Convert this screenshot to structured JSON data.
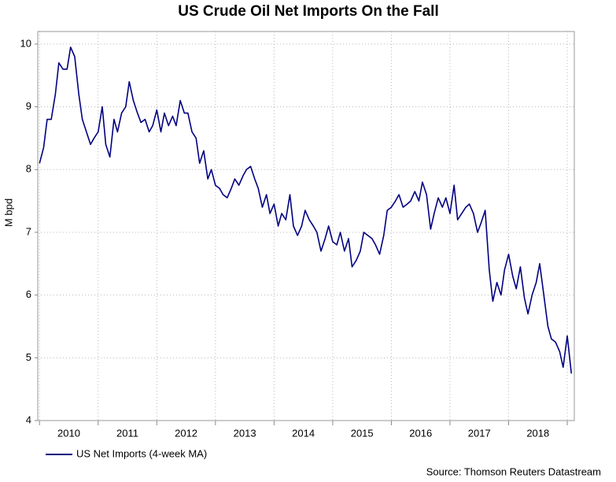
{
  "chart_data": {
    "type": "line",
    "title": "US Crude Oil Net Imports On the Fall",
    "y_label": "M bpd",
    "source": "Source: Thomson Reuters Datastream",
    "xlim": [
      2009.97,
      2019.12
    ],
    "xticks": [
      2010,
      2011,
      2012,
      2013,
      2014,
      2015,
      2016,
      2017,
      2018,
      2019
    ],
    "xlabels": [
      {
        "value": 2010.5,
        "label": "2010"
      },
      {
        "value": 2011.5,
        "label": "2011"
      },
      {
        "value": 2012.5,
        "label": "2012"
      },
      {
        "value": 2013.5,
        "label": "2013"
      },
      {
        "value": 2014.5,
        "label": "2014"
      },
      {
        "value": 2015.5,
        "label": "2015"
      },
      {
        "value": 2016.5,
        "label": "2016"
      },
      {
        "value": 2017.5,
        "label": "2017"
      },
      {
        "value": 2018.5,
        "label": "2018"
      }
    ],
    "ylim": [
      4,
      10.2
    ],
    "yticks": [
      4,
      5,
      6,
      7,
      8,
      9,
      10
    ],
    "grid": true,
    "legend": "bottom-left",
    "x": [
      2010,
      2010.07,
      2010.13,
      2010.2,
      2010.27,
      2010.33,
      2010.4,
      2010.47,
      2010.53,
      2010.6,
      2010.67,
      2010.73,
      2010.8,
      2010.87,
      2010.93,
      2011,
      2011.07,
      2011.13,
      2011.2,
      2011.27,
      2011.33,
      2011.4,
      2011.47,
      2011.53,
      2011.6,
      2011.67,
      2011.73,
      2011.8,
      2011.87,
      2011.93,
      2012,
      2012.07,
      2012.13,
      2012.2,
      2012.27,
      2012.33,
      2012.4,
      2012.47,
      2012.53,
      2012.6,
      2012.67,
      2012.73,
      2012.8,
      2012.87,
      2012.93,
      2013,
      2013.07,
      2013.13,
      2013.2,
      2013.27,
      2013.33,
      2013.4,
      2013.47,
      2013.53,
      2013.6,
      2013.67,
      2013.73,
      2013.8,
      2013.87,
      2013.93,
      2014,
      2014.07,
      2014.13,
      2014.2,
      2014.27,
      2014.33,
      2014.4,
      2014.47,
      2014.53,
      2014.6,
      2014.67,
      2014.73,
      2014.8,
      2014.87,
      2014.93,
      2015,
      2015.07,
      2015.13,
      2015.2,
      2015.27,
      2015.33,
      2015.4,
      2015.47,
      2015.53,
      2015.6,
      2015.67,
      2015.73,
      2015.8,
      2015.87,
      2015.93,
      2016,
      2016.07,
      2016.13,
      2016.2,
      2016.27,
      2016.33,
      2016.4,
      2016.47,
      2016.53,
      2016.6,
      2016.67,
      2016.73,
      2016.8,
      2016.87,
      2016.93,
      2017,
      2017.07,
      2017.13,
      2017.2,
      2017.27,
      2017.33,
      2017.4,
      2017.47,
      2017.53,
      2017.6,
      2017.67,
      2017.73,
      2017.8,
      2017.87,
      2017.93,
      2018,
      2018.07,
      2018.13,
      2018.2,
      2018.27,
      2018.33,
      2018.4,
      2018.47,
      2018.53,
      2018.6,
      2018.67,
      2018.73,
      2018.8,
      2018.87,
      2018.93,
      2019,
      2019.07
    ],
    "series": [
      {
        "name": "US Net Imports (4-week MA)",
        "color": "#000080",
        "values": [
          8.1,
          8.35,
          8.8,
          8.8,
          9.2,
          9.7,
          9.6,
          9.6,
          9.95,
          9.8,
          9.2,
          8.8,
          8.6,
          8.4,
          8.5,
          8.6,
          9.0,
          8.4,
          8.2,
          8.8,
          8.6,
          8.9,
          9.0,
          9.4,
          9.1,
          8.9,
          8.75,
          8.8,
          8.6,
          8.7,
          8.95,
          8.6,
          8.9,
          8.7,
          8.85,
          8.7,
          9.1,
          8.9,
          8.9,
          8.6,
          8.5,
          8.1,
          8.3,
          7.85,
          8.0,
          7.75,
          7.7,
          7.6,
          7.55,
          7.7,
          7.85,
          7.75,
          7.9,
          8.0,
          8.05,
          7.85,
          7.7,
          7.4,
          7.6,
          7.3,
          7.45,
          7.1,
          7.3,
          7.2,
          7.6,
          7.1,
          6.95,
          7.1,
          7.35,
          7.2,
          7.1,
          7.0,
          6.7,
          6.9,
          7.1,
          6.85,
          6.8,
          7.0,
          6.7,
          6.9,
          6.45,
          6.55,
          6.7,
          7.0,
          6.95,
          6.9,
          6.8,
          6.65,
          6.95,
          7.35,
          7.4,
          7.5,
          7.6,
          7.4,
          7.45,
          7.5,
          7.65,
          7.5,
          7.8,
          7.6,
          7.05,
          7.3,
          7.55,
          7.4,
          7.55,
          7.3,
          7.75,
          7.2,
          7.3,
          7.4,
          7.45,
          7.3,
          7.0,
          7.15,
          7.35,
          6.4,
          5.9,
          6.2,
          6.0,
          6.4,
          6.65,
          6.3,
          6.1,
          6.45,
          5.95,
          5.7,
          6.0,
          6.2,
          6.5,
          6.0,
          5.5,
          5.3,
          5.25,
          5.1,
          4.85,
          5.35,
          4.75
        ]
      }
    ]
  }
}
